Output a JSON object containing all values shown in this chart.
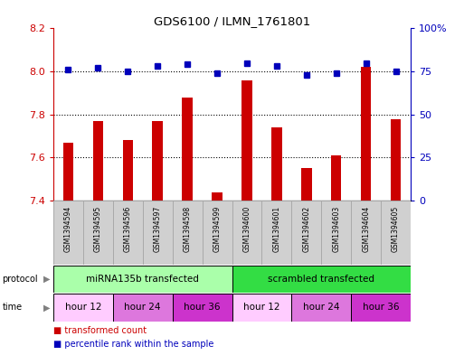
{
  "title": "GDS6100 / ILMN_1761801",
  "samples": [
    "GSM1394594",
    "GSM1394595",
    "GSM1394596",
    "GSM1394597",
    "GSM1394598",
    "GSM1394599",
    "GSM1394600",
    "GSM1394601",
    "GSM1394602",
    "GSM1394603",
    "GSM1394604",
    "GSM1394605"
  ],
  "transformed_count": [
    7.67,
    7.77,
    7.68,
    7.77,
    7.88,
    7.44,
    7.96,
    7.74,
    7.55,
    7.61,
    8.02,
    7.78
  ],
  "percentile_rank": [
    76,
    77,
    75,
    78,
    79,
    74,
    80,
    78,
    73,
    74,
    80,
    75
  ],
  "ylim_left": [
    7.4,
    8.2
  ],
  "ylim_right": [
    0,
    100
  ],
  "yticks_left": [
    7.4,
    7.6,
    7.8,
    8.0,
    8.2
  ],
  "yticks_right": [
    0,
    25,
    50,
    75,
    100
  ],
  "ytick_labels_right": [
    "0",
    "25",
    "50",
    "75",
    "100%"
  ],
  "bar_color": "#cc0000",
  "dot_color": "#0000bb",
  "protocol_groups": [
    {
      "label": "miRNA135b transfected",
      "start": 0,
      "end": 6,
      "color": "#aaffaa"
    },
    {
      "label": "scrambled transfected",
      "start": 6,
      "end": 12,
      "color": "#33dd44"
    }
  ],
  "time_groups": [
    {
      "label": "hour 12",
      "start": 0,
      "end": 2,
      "color": "#ffccff"
    },
    {
      "label": "hour 24",
      "start": 2,
      "end": 4,
      "color": "#dd77dd"
    },
    {
      "label": "hour 36",
      "start": 4,
      "end": 6,
      "color": "#cc33cc"
    },
    {
      "label": "hour 12",
      "start": 6,
      "end": 8,
      "color": "#ffccff"
    },
    {
      "label": "hour 24",
      "start": 8,
      "end": 10,
      "color": "#dd77dd"
    },
    {
      "label": "hour 36",
      "start": 10,
      "end": 12,
      "color": "#cc33cc"
    }
  ],
  "legend_items": [
    {
      "label": "transformed count",
      "color": "#cc0000"
    },
    {
      "label": "percentile rank within the sample",
      "color": "#0000bb"
    }
  ],
  "sample_box_color": "#d0d0d0",
  "sample_box_edge": "#aaaaaa",
  "grid_yticks": [
    7.6,
    7.8,
    8.0
  ]
}
